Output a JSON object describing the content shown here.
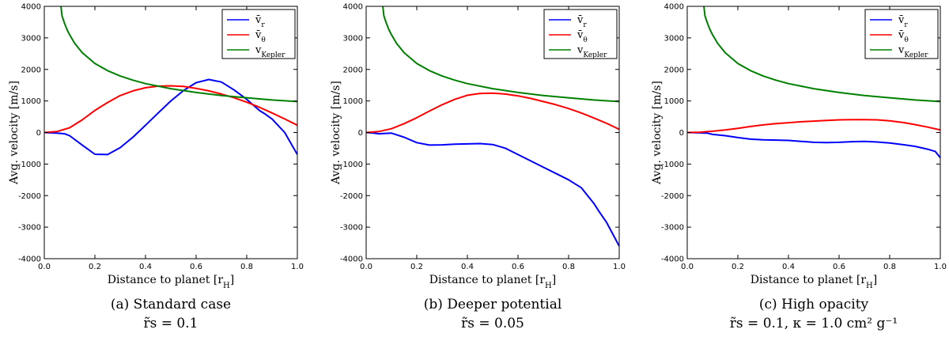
{
  "figure": {
    "columns": 3
  },
  "chart_data": [
    {
      "type": "line",
      "caption": "(a) Standard case",
      "subcaption": "r̃s = 0.1",
      "xlabel": "Distance to planet [rH]",
      "ylabel": "Avg. velocity [m/s]",
      "xlim": [
        0.0,
        1.0
      ],
      "ylim": [
        -4000,
        4000
      ],
      "xticks": [
        0.0,
        0.2,
        0.4,
        0.6,
        0.8,
        1.0
      ],
      "yticks": [
        -4000,
        -3000,
        -2000,
        -1000,
        0,
        1000,
        2000,
        3000,
        4000
      ],
      "legend_position": "top-right",
      "series": [
        {
          "name": "v̄r",
          "color": "#0000ff",
          "x": [
            0.0,
            0.05,
            0.08,
            0.1,
            0.15,
            0.2,
            0.25,
            0.3,
            0.35,
            0.4,
            0.45,
            0.5,
            0.55,
            0.6,
            0.65,
            0.7,
            0.75,
            0.8,
            0.85,
            0.87,
            0.9,
            0.95,
            1.0
          ],
          "y": [
            0,
            -20,
            -40,
            -100,
            -400,
            -690,
            -700,
            -480,
            -150,
            230,
            620,
            1000,
            1330,
            1580,
            1680,
            1600,
            1350,
            1050,
            700,
            600,
            430,
            0,
            -700
          ]
        },
        {
          "name": "v̄θ",
          "color": "#ff0000",
          "x": [
            0.0,
            0.05,
            0.1,
            0.15,
            0.2,
            0.25,
            0.3,
            0.35,
            0.4,
            0.45,
            0.5,
            0.55,
            0.6,
            0.65,
            0.7,
            0.75,
            0.8,
            0.85,
            0.9,
            0.95,
            1.0
          ],
          "y": [
            0,
            30,
            150,
            400,
            700,
            950,
            1170,
            1320,
            1420,
            1470,
            1480,
            1460,
            1400,
            1320,
            1220,
            1100,
            960,
            800,
            620,
            430,
            230
          ]
        },
        {
          "name": "vKepler",
          "color": "#008000",
          "x": [
            0.066,
            0.07,
            0.08,
            0.09,
            0.1,
            0.12,
            0.15,
            0.2,
            0.25,
            0.3,
            0.35,
            0.4,
            0.5,
            0.6,
            0.7,
            0.8,
            0.9,
            1.0
          ],
          "y": [
            4000,
            3700,
            3460,
            3260,
            3100,
            2830,
            2530,
            2190,
            1960,
            1790,
            1660,
            1550,
            1390,
            1270,
            1170,
            1100,
            1030,
            980
          ]
        }
      ]
    },
    {
      "type": "line",
      "caption": "(b) Deeper potential",
      "subcaption": "r̃s = 0.05",
      "xlabel": "Distance to planet [rH]",
      "ylabel": "Avg. velocity [m/s]",
      "xlim": [
        0.0,
        1.0
      ],
      "ylim": [
        -4000,
        4000
      ],
      "xticks": [
        0.0,
        0.2,
        0.4,
        0.6,
        0.8,
        1.0
      ],
      "yticks": [
        -4000,
        -3000,
        -2000,
        -1000,
        0,
        1000,
        2000,
        3000,
        4000
      ],
      "legend_position": "top-right",
      "series": [
        {
          "name": "v̄r",
          "color": "#0000ff",
          "x": [
            0.0,
            0.03,
            0.05,
            0.07,
            0.1,
            0.15,
            0.2,
            0.25,
            0.3,
            0.35,
            0.4,
            0.45,
            0.5,
            0.55,
            0.6,
            0.65,
            0.7,
            0.75,
            0.8,
            0.85,
            0.88,
            0.9,
            0.92,
            0.95,
            1.0
          ],
          "y": [
            0,
            -20,
            -40,
            -30,
            -20,
            -150,
            -320,
            -400,
            -390,
            -370,
            -360,
            -350,
            -380,
            -500,
            -700,
            -900,
            -1100,
            -1300,
            -1500,
            -1750,
            -2050,
            -2250,
            -2500,
            -2850,
            -3600
          ]
        },
        {
          "name": "v̄θ",
          "color": "#ff0000",
          "x": [
            0.0,
            0.05,
            0.1,
            0.15,
            0.2,
            0.25,
            0.3,
            0.35,
            0.4,
            0.45,
            0.5,
            0.55,
            0.6,
            0.65,
            0.7,
            0.75,
            0.8,
            0.85,
            0.9,
            0.95,
            1.0
          ],
          "y": [
            0,
            30,
            120,
            280,
            470,
            680,
            880,
            1050,
            1180,
            1240,
            1250,
            1220,
            1160,
            1080,
            980,
            880,
            760,
            620,
            460,
            290,
            100
          ]
        },
        {
          "name": "vKepler",
          "color": "#008000",
          "x": [
            0.066,
            0.07,
            0.08,
            0.09,
            0.1,
            0.12,
            0.15,
            0.2,
            0.25,
            0.3,
            0.35,
            0.4,
            0.5,
            0.6,
            0.7,
            0.8,
            0.9,
            1.0
          ],
          "y": [
            4000,
            3700,
            3460,
            3260,
            3100,
            2830,
            2530,
            2190,
            1960,
            1790,
            1660,
            1550,
            1390,
            1270,
            1170,
            1100,
            1030,
            980
          ]
        }
      ]
    },
    {
      "type": "line",
      "caption": "(c) High opacity",
      "subcaption": "r̃s = 0.1,  κ = 1.0 cm² g⁻¹",
      "xlabel": "Distance to planet [rH]",
      "ylabel": "Avg. velocity [m/s]",
      "xlim": [
        0.0,
        1.0
      ],
      "ylim": [
        -4000,
        4000
      ],
      "xticks": [
        0.0,
        0.2,
        0.4,
        0.6,
        0.8,
        1.0
      ],
      "yticks": [
        -4000,
        -3000,
        -2000,
        -1000,
        0,
        1000,
        2000,
        3000,
        4000
      ],
      "legend_position": "top-right",
      "series": [
        {
          "name": "v̄r",
          "color": "#0000ff",
          "x": [
            0.0,
            0.05,
            0.08,
            0.1,
            0.15,
            0.2,
            0.25,
            0.3,
            0.35,
            0.4,
            0.45,
            0.5,
            0.55,
            0.6,
            0.65,
            0.7,
            0.75,
            0.8,
            0.85,
            0.9,
            0.95,
            0.98,
            1.0
          ],
          "y": [
            0,
            -10,
            -20,
            -60,
            -100,
            -160,
            -210,
            -230,
            -240,
            -250,
            -280,
            -310,
            -320,
            -310,
            -290,
            -280,
            -300,
            -330,
            -380,
            -440,
            -530,
            -600,
            -800
          ]
        },
        {
          "name": "v̄θ",
          "color": "#ff0000",
          "x": [
            0.0,
            0.05,
            0.1,
            0.15,
            0.2,
            0.25,
            0.3,
            0.35,
            0.4,
            0.45,
            0.5,
            0.55,
            0.6,
            0.65,
            0.7,
            0.75,
            0.8,
            0.85,
            0.9,
            0.95,
            1.0
          ],
          "y": [
            0,
            10,
            40,
            80,
            130,
            190,
            240,
            280,
            310,
            340,
            360,
            380,
            400,
            410,
            410,
            400,
            370,
            320,
            250,
            170,
            80
          ]
        },
        {
          "name": "vKepler",
          "color": "#008000",
          "x": [
            0.066,
            0.07,
            0.08,
            0.09,
            0.1,
            0.12,
            0.15,
            0.2,
            0.25,
            0.3,
            0.35,
            0.4,
            0.5,
            0.6,
            0.7,
            0.8,
            0.9,
            1.0
          ],
          "y": [
            4000,
            3700,
            3460,
            3260,
            3100,
            2830,
            2530,
            2190,
            1960,
            1790,
            1660,
            1550,
            1390,
            1270,
            1170,
            1100,
            1030,
            980
          ]
        }
      ]
    }
  ]
}
